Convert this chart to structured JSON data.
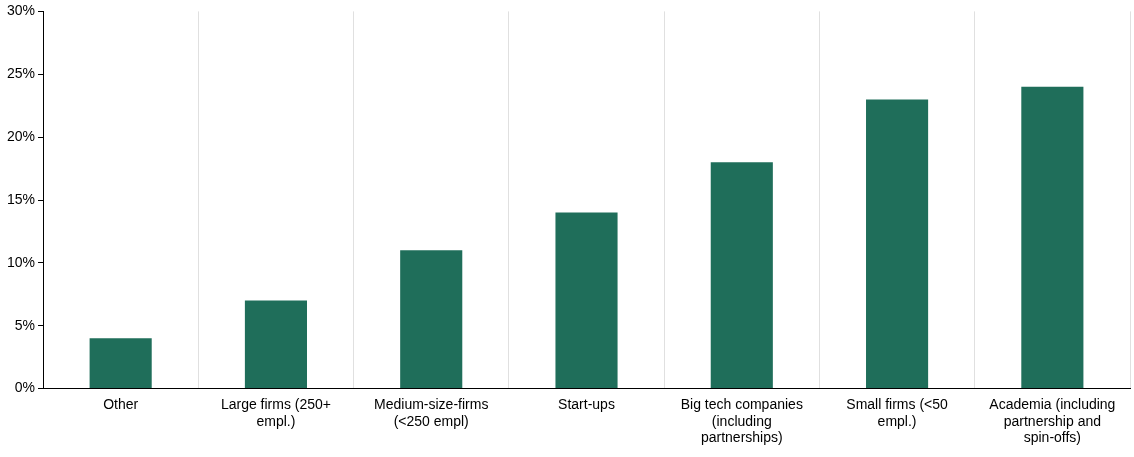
{
  "chart_data": {
    "type": "bar",
    "categories": [
      "Other",
      "Large firms (250+ empl.)",
      "Medium-size-firms (<250 empl)",
      "Start-ups",
      "Big tech companies (including partnerships)",
      "Small firms (<50 empl.)",
      "Academia (including partnership and spin-offs)"
    ],
    "values": [
      4,
      7,
      11,
      14,
      18,
      23,
      24
    ],
    "color": "#1f6e5a",
    "ylim": [
      0,
      30
    ],
    "yticks": [
      {
        "value": 0,
        "label": "0%"
      },
      {
        "value": 5,
        "label": "5%"
      },
      {
        "value": 10,
        "label": "10%"
      },
      {
        "value": 15,
        "label": "15%"
      },
      {
        "value": 20,
        "label": "20%"
      },
      {
        "value": 25,
        "label": "25%"
      },
      {
        "value": 30,
        "label": "30%"
      }
    ],
    "grid": "x",
    "legend": false
  }
}
